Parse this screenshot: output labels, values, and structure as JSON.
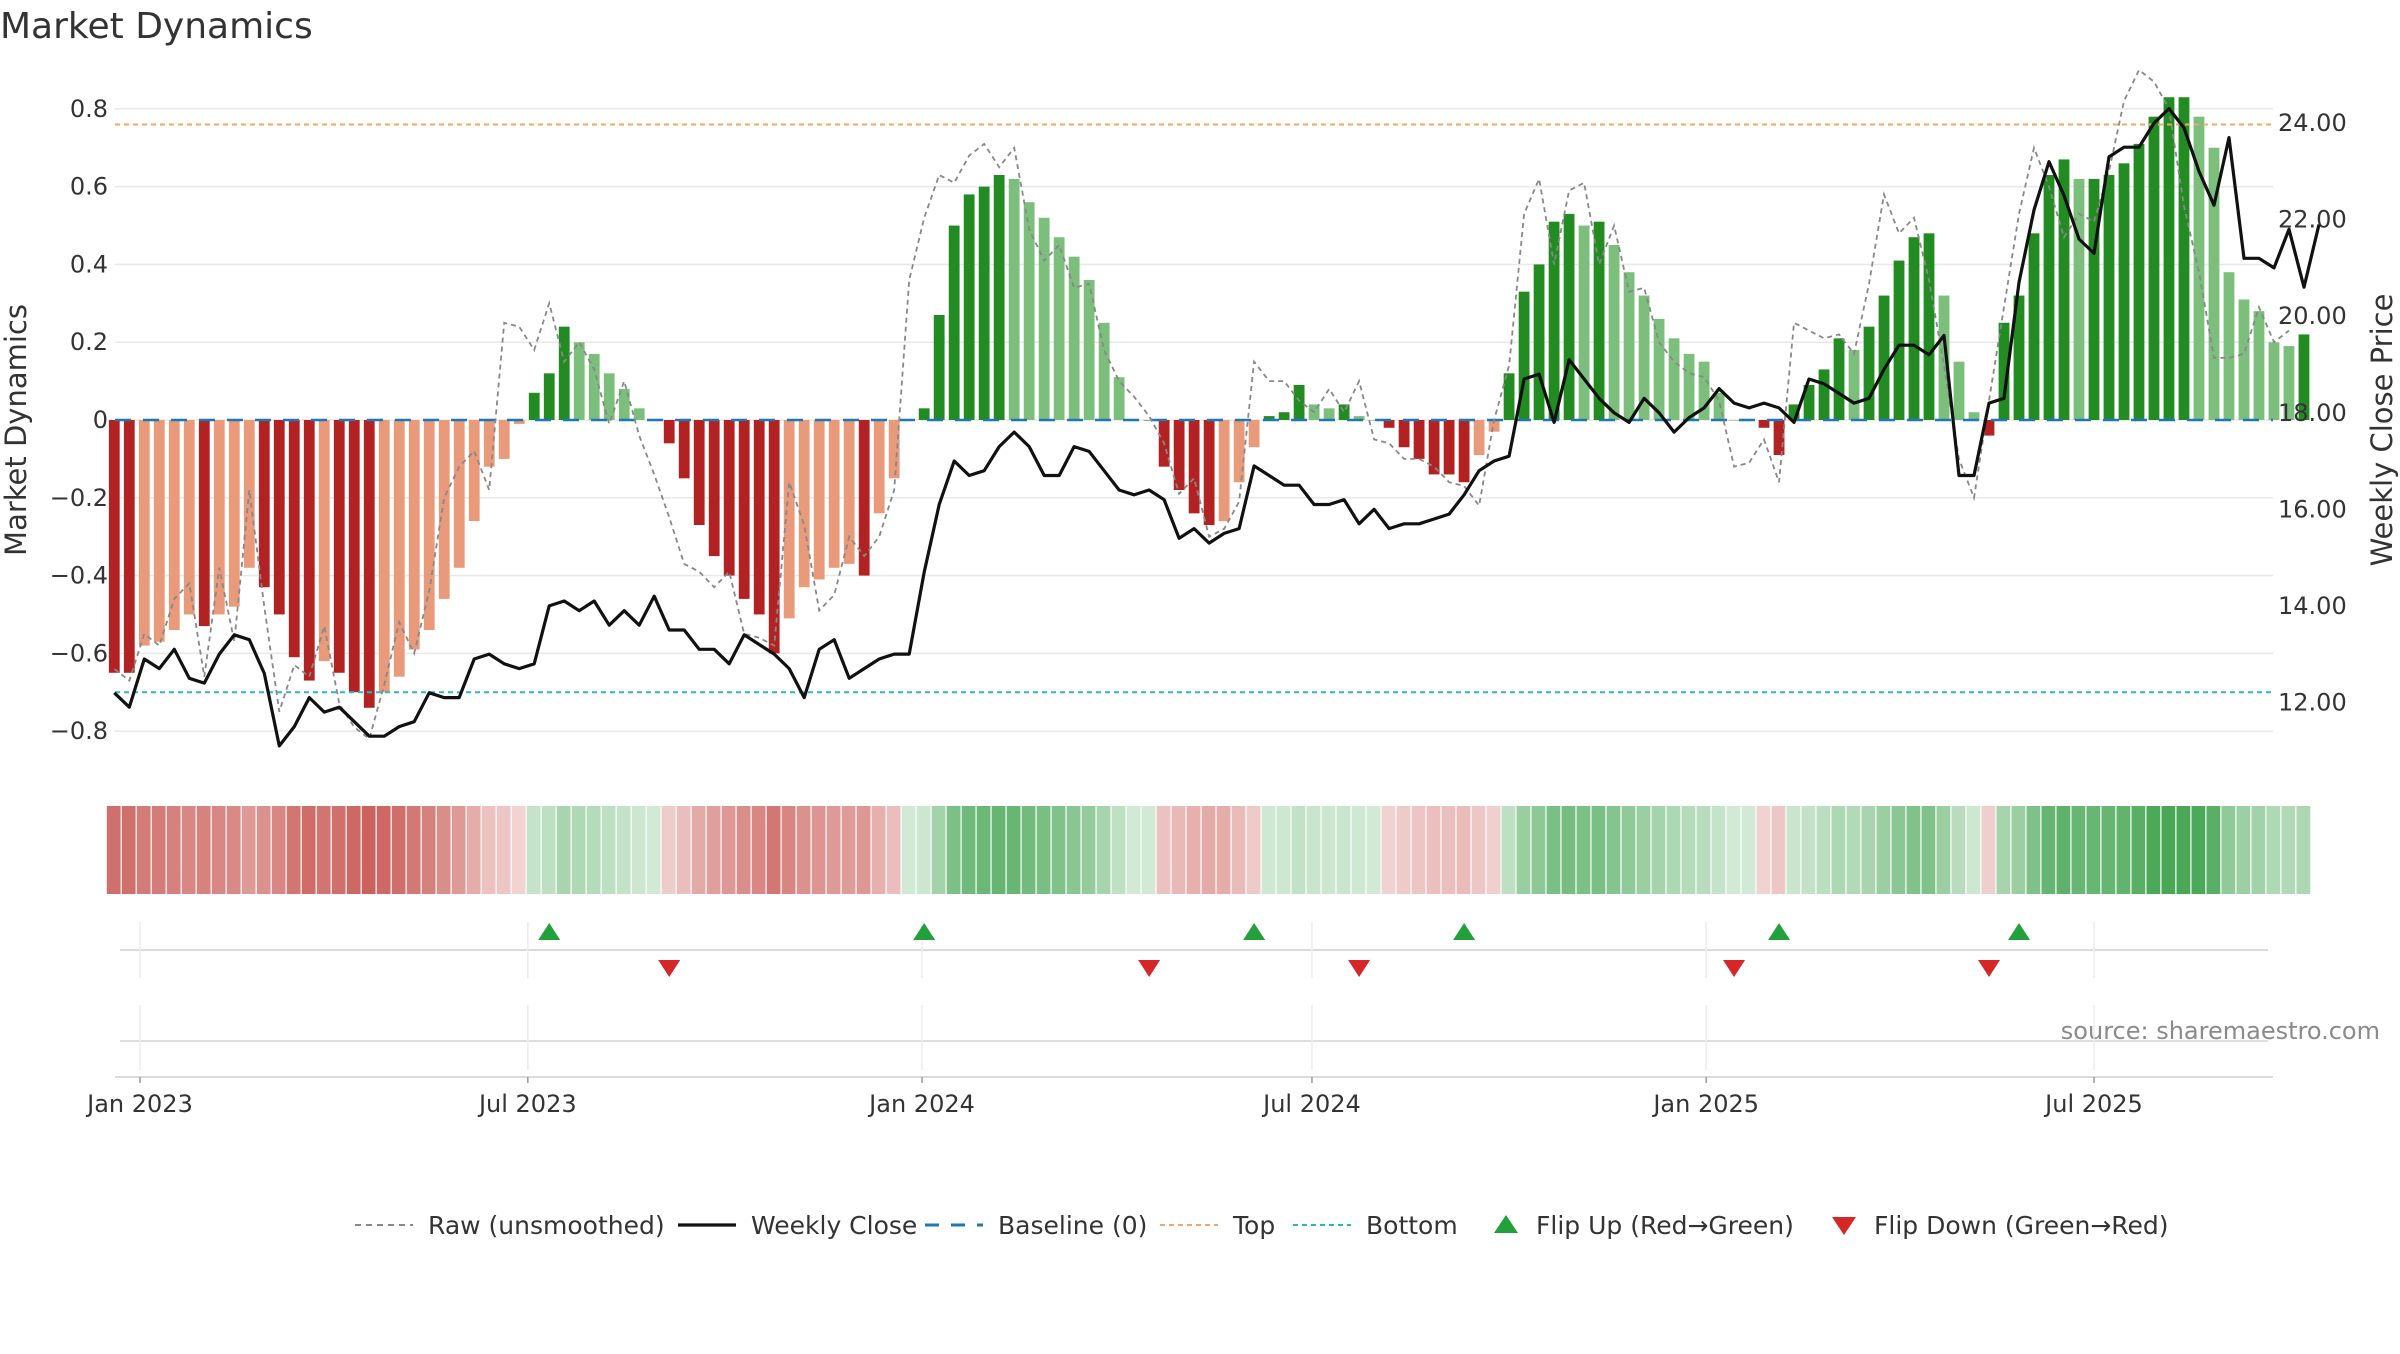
{
  "chart_data": {
    "type": "bar",
    "title": "Market Dynamics",
    "ylabel": "Market Dynamics",
    "y2label": "Weekly Close Price",
    "source": "source: sharemaestro.com",
    "ylim": [
      -0.9,
      0.9
    ],
    "y2lim": [
      10.6,
      25.1
    ],
    "yticks": [
      "0.8",
      "0.6",
      "0.4",
      "0.2",
      "0",
      "−0.2",
      "−0.4",
      "−0.6",
      "−0.8"
    ],
    "yticks_values": [
      0.8,
      0.6,
      0.4,
      0.2,
      0,
      -0.2,
      -0.4,
      -0.6,
      -0.8
    ],
    "y2ticks": [
      "24.00",
      "22.00",
      "20.00",
      "18.00",
      "16.00",
      "14.00",
      "12.00"
    ],
    "y2ticks_values": [
      24,
      22,
      20,
      18,
      16,
      14,
      12
    ],
    "xticks": [
      "Jan 2023",
      "Jul 2023",
      "Jan 2024",
      "Jul 2024",
      "Jan 2025",
      "Jul 2025"
    ],
    "xticks_dates": [
      "2023-01-01",
      "2023-07-01",
      "2024-01-01",
      "2024-07-01",
      "2025-01-01",
      "2025-07-01"
    ],
    "first_week": "2022-12-20",
    "top_threshold": 0.76,
    "bottom_threshold": -0.7,
    "baseline": 0,
    "grid": true,
    "legend_placement": "bottom",
    "momentum": [
      -0.65,
      -0.65,
      -0.58,
      -0.57,
      -0.54,
      -0.5,
      -0.53,
      -0.5,
      -0.48,
      -0.38,
      -0.43,
      -0.5,
      -0.61,
      -0.67,
      -0.62,
      -0.65,
      -0.7,
      -0.74,
      -0.7,
      -0.66,
      -0.59,
      -0.54,
      -0.46,
      -0.38,
      -0.26,
      -0.12,
      -0.1,
      -0.01,
      0.07,
      0.12,
      0.24,
      0.2,
      0.17,
      0.12,
      0.08,
      0.03,
      0.0,
      -0.06,
      -0.15,
      -0.27,
      -0.35,
      -0.4,
      -0.46,
      -0.5,
      -0.6,
      -0.51,
      -0.43,
      -0.41,
      -0.38,
      -0.37,
      -0.4,
      -0.24,
      -0.15,
      0.0,
      0.03,
      0.27,
      0.5,
      0.58,
      0.6,
      0.63,
      0.62,
      0.56,
      0.52,
      0.47,
      0.42,
      0.36,
      0.25,
      0.11,
      0.0,
      0.0,
      -0.12,
      -0.18,
      -0.24,
      -0.27,
      -0.26,
      -0.16,
      -0.07,
      0.01,
      0.02,
      0.09,
      0.04,
      0.03,
      0.04,
      0.01,
      0.0,
      -0.02,
      -0.07,
      -0.1,
      -0.14,
      -0.14,
      -0.16,
      -0.09,
      -0.03,
      0.12,
      0.33,
      0.4,
      0.51,
      0.53,
      0.5,
      0.51,
      0.45,
      0.38,
      0.32,
      0.26,
      0.21,
      0.17,
      0.15,
      0.07,
      0.0,
      0.0,
      -0.02,
      -0.09,
      0.04,
      0.09,
      0.13,
      0.21,
      0.18,
      0.24,
      0.32,
      0.41,
      0.47,
      0.48,
      0.32,
      0.15,
      0.02,
      -0.04,
      0.25,
      0.32,
      0.48,
      0.63,
      0.67,
      0.62,
      0.62,
      0.63,
      0.66,
      0.71,
      0.78,
      0.83,
      0.83,
      0.78,
      0.7,
      0.38,
      0.31,
      0.28,
      0.2,
      0.19,
      0.22
    ],
    "raw": [
      -0.64,
      -0.67,
      -0.55,
      -0.58,
      -0.46,
      -0.42,
      -0.66,
      -0.38,
      -0.57,
      -0.18,
      -0.48,
      -0.75,
      -0.63,
      -0.66,
      -0.53,
      -0.73,
      -0.79,
      -0.82,
      -0.68,
      -0.52,
      -0.6,
      -0.44,
      -0.2,
      -0.12,
      -0.08,
      -0.18,
      0.25,
      0.24,
      0.18,
      0.3,
      0.15,
      0.2,
      0.13,
      -0.01,
      0.1,
      -0.04,
      -0.14,
      -0.25,
      -0.37,
      -0.39,
      -0.43,
      -0.39,
      -0.55,
      -0.56,
      -0.58,
      -0.16,
      -0.27,
      -0.49,
      -0.45,
      -0.3,
      -0.35,
      -0.3,
      -0.18,
      0.36,
      0.52,
      0.63,
      0.61,
      0.68,
      0.71,
      0.65,
      0.7,
      0.49,
      0.41,
      0.45,
      0.34,
      0.35,
      0.18,
      0.1,
      0.06,
      0.01,
      -0.06,
      -0.19,
      -0.15,
      -0.3,
      -0.28,
      -0.21,
      0.15,
      0.1,
      0.1,
      0.05,
      0.02,
      0.08,
      0.02,
      0.1,
      -0.05,
      -0.06,
      -0.1,
      -0.1,
      -0.12,
      -0.16,
      -0.17,
      -0.22,
      0.0,
      0.14,
      0.53,
      0.62,
      0.4,
      0.59,
      0.61,
      0.4,
      0.5,
      0.33,
      0.34,
      0.2,
      0.15,
      0.12,
      0.11,
      0.05,
      -0.12,
      -0.11,
      -0.05,
      -0.16,
      0.25,
      0.23,
      0.21,
      0.22,
      0.17,
      0.35,
      0.58,
      0.48,
      0.52,
      0.36,
      0.14,
      -0.1,
      -0.2,
      0.05,
      0.29,
      0.53,
      0.7,
      0.6,
      0.47,
      0.53,
      0.51,
      0.64,
      0.82,
      0.9,
      0.87,
      0.8,
      0.55,
      0.38,
      0.16,
      0.16,
      0.17,
      0.29,
      0.2,
      0.23
    ],
    "close": [
      12.2,
      11.9,
      12.9,
      12.7,
      13.1,
      12.5,
      12.4,
      13.0,
      13.4,
      13.3,
      12.6,
      11.1,
      11.5,
      12.1,
      11.8,
      11.9,
      11.6,
      11.3,
      11.3,
      11.5,
      11.6,
      12.2,
      12.1,
      12.1,
      12.9,
      13.0,
      12.8,
      12.7,
      12.8,
      14.0,
      14.1,
      13.9,
      14.1,
      13.6,
      13.9,
      13.6,
      14.2,
      13.5,
      13.5,
      13.1,
      13.1,
      12.8,
      13.4,
      13.2,
      13.0,
      12.7,
      12.1,
      13.1,
      13.3,
      12.5,
      12.7,
      12.9,
      13.0,
      13.0,
      14.7,
      16.1,
      17.0,
      16.7,
      16.8,
      17.3,
      17.6,
      17.3,
      16.7,
      16.7,
      17.3,
      17.2,
      16.8,
      16.4,
      16.3,
      16.4,
      16.2,
      15.4,
      15.6,
      15.3,
      15.5,
      15.6,
      16.9,
      16.7,
      16.5,
      16.5,
      16.1,
      16.1,
      16.2,
      15.7,
      16.0,
      15.6,
      15.7,
      15.7,
      15.8,
      15.9,
      16.3,
      16.8,
      17.0,
      17.1,
      18.7,
      18.8,
      17.8,
      19.1,
      18.7,
      18.3,
      18.0,
      17.8,
      18.3,
      18.0,
      17.6,
      17.9,
      18.1,
      18.5,
      18.2,
      18.1,
      18.2,
      18.1,
      17.8,
      18.7,
      18.6,
      18.4,
      18.2,
      18.3,
      18.9,
      19.4,
      19.4,
      19.2,
      19.6,
      16.7,
      16.7,
      18.2,
      18.3,
      20.7,
      22.2,
      23.2,
      22.5,
      21.6,
      21.3,
      23.3,
      23.5,
      23.5,
      24.0,
      24.3,
      23.9,
      23.0,
      22.3,
      23.7,
      21.2,
      21.2,
      21.0,
      21.8,
      20.6,
      21.9
    ],
    "regime_strip": [
      -0.65,
      -0.65,
      -0.58,
      -0.57,
      -0.54,
      -0.5,
      -0.53,
      -0.5,
      -0.48,
      -0.38,
      -0.43,
      -0.5,
      -0.61,
      -0.67,
      -0.62,
      -0.65,
      -0.7,
      -0.74,
      -0.7,
      -0.66,
      -0.59,
      -0.54,
      -0.46,
      -0.38,
      -0.26,
      -0.12,
      -0.1,
      -0.01,
      0.07,
      0.12,
      0.24,
      0.2,
      0.17,
      0.12,
      0.08,
      0.03,
      0.0,
      -0.06,
      -0.15,
      -0.27,
      -0.35,
      -0.4,
      -0.46,
      -0.5,
      -0.6,
      -0.51,
      -0.43,
      -0.41,
      -0.38,
      -0.37,
      -0.4,
      -0.24,
      -0.15,
      0.0,
      0.03,
      0.27,
      0.5,
      0.58,
      0.6,
      0.63,
      0.62,
      0.56,
      0.52,
      0.47,
      0.42,
      0.36,
      0.25,
      0.11,
      0.0,
      0.0,
      -0.12,
      -0.18,
      -0.24,
      -0.27,
      -0.26,
      -0.16,
      -0.07,
      0.01,
      0.02,
      0.09,
      0.04,
      0.03,
      0.04,
      0.01,
      0.0,
      -0.02,
      -0.07,
      -0.1,
      -0.14,
      -0.14,
      -0.16,
      -0.09,
      -0.03,
      0.12,
      0.33,
      0.4,
      0.51,
      0.53,
      0.5,
      0.51,
      0.45,
      0.38,
      0.32,
      0.26,
      0.21,
      0.17,
      0.15,
      0.07,
      0.0,
      0.0,
      -0.02,
      -0.09,
      0.04,
      0.09,
      0.13,
      0.21,
      0.18,
      0.24,
      0.32,
      0.41,
      0.47,
      0.48,
      0.32,
      0.15,
      0.02,
      -0.04,
      0.25,
      0.32,
      0.48,
      0.63,
      0.67,
      0.62,
      0.62,
      0.63,
      0.66,
      0.71,
      0.78,
      0.83,
      0.83,
      0.78,
      0.7,
      0.38,
      0.31,
      0.28,
      0.2,
      0.19,
      0.22
    ],
    "flip_up_dates": [
      "2023-07-11",
      "2024-01-02",
      "2024-06-04",
      "2024-09-10",
      "2025-02-04",
      "2025-05-27"
    ],
    "flip_down_dates": [
      "2023-09-05",
      "2024-04-16",
      "2024-07-23",
      "2025-01-14",
      "2025-05-13"
    ],
    "colors": {
      "green_strong": "#228b22",
      "green_light": "#7cbf7c",
      "red_strong": "#b22222",
      "red_light": "#e89a7a",
      "close_line": "#111111",
      "raw_line": "#888888",
      "baseline": "#1f77b4",
      "top": "#f0a868",
      "bottom": "#28b8c8",
      "flip_up": "#22a03c",
      "flip_down": "#d62728",
      "grid": "#e8e8e8"
    },
    "legend": [
      {
        "label": "Raw (unsmoothed)",
        "marker": "dashed-gray-line"
      },
      {
        "label": "Weekly Close",
        "marker": "solid-black-line"
      },
      {
        "label": "Baseline (0)",
        "marker": "dashed-blue-line"
      },
      {
        "label": "Top",
        "marker": "dotted-orange-line"
      },
      {
        "label": "Bottom",
        "marker": "dotted-cyan-line"
      },
      {
        "label": "Flip Up (Red→Green)",
        "marker": "up-triangle"
      },
      {
        "label": "Flip Down (Green→Red)",
        "marker": "down-triangle"
      }
    ]
  }
}
